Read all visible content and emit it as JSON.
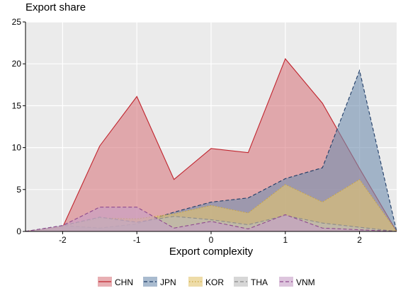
{
  "chart_data": {
    "type": "area",
    "ylabel": "Export share",
    "xlabel": "Export complexity",
    "xlim": [
      -2.5,
      2.5
    ],
    "ylim": [
      0,
      25
    ],
    "x_ticks": [
      -2,
      -1,
      0,
      1,
      2
    ],
    "y_ticks": [
      0,
      5,
      10,
      15,
      20,
      25
    ],
    "x_tick_labels": [
      "-2",
      "-1",
      "0",
      "1",
      "2"
    ],
    "y_tick_labels": [
      "0",
      "5",
      "10",
      "15",
      "20",
      "25"
    ],
    "grid": true,
    "legend_position": "bottom",
    "x": [
      -2.5,
      -2,
      -1.5,
      -1,
      -0.5,
      0,
      0.5,
      1,
      1.5,
      2,
      2.5
    ],
    "series": [
      {
        "name": "CHN",
        "values": [
          0,
          0.5,
          10.2,
          16.1,
          6.2,
          9.9,
          9.4,
          20.6,
          15.3,
          7.5,
          0
        ],
        "fill": "#D97A80",
        "stroke": "#C0242D",
        "dash": "solid"
      },
      {
        "name": "JPN",
        "values": [
          0,
          0.7,
          0.4,
          0.9,
          2.3,
          3.5,
          4.0,
          6.3,
          7.6,
          19.2,
          0
        ],
        "fill": "#6F8DAF",
        "stroke": "#1F3C66",
        "dash": "dashed"
      },
      {
        "name": "KOR",
        "values": [
          0,
          0.6,
          1.6,
          1.5,
          2.1,
          3.1,
          2.2,
          5.6,
          3.5,
          6.2,
          0
        ],
        "fill": "#E3C46E",
        "stroke": "#C9A43C",
        "dash": "dotted"
      },
      {
        "name": "THA",
        "values": [
          0,
          0.7,
          1.7,
          1.1,
          1.8,
          1.4,
          0.8,
          1.9,
          1.0,
          0.5,
          0
        ],
        "fill": "#BDBDBD",
        "stroke": "#8A8A8A",
        "dash": "dashed"
      },
      {
        "name": "VNM",
        "values": [
          0,
          0.7,
          2.9,
          2.9,
          0.4,
          1.2,
          0.3,
          2.0,
          0.4,
          0.2,
          0
        ],
        "fill": "#C79FC7",
        "stroke": "#8E4A8E",
        "dash": "dashed"
      }
    ]
  }
}
